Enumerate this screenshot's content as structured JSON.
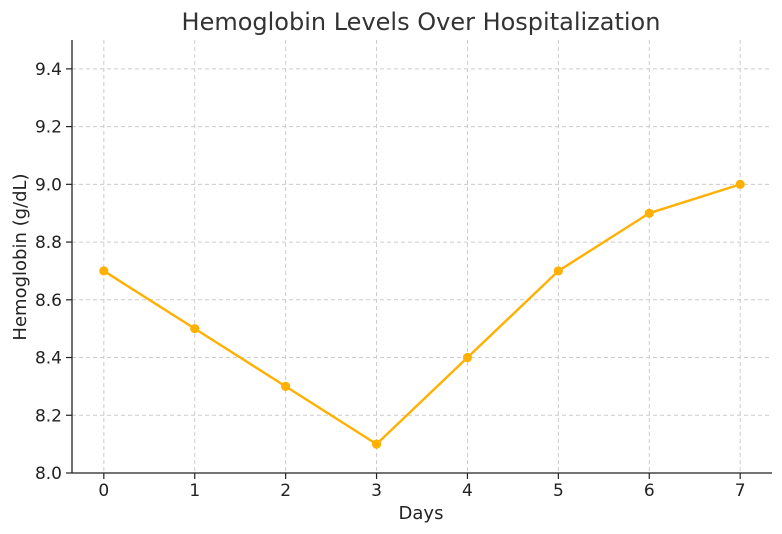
{
  "chart_data": {
    "type": "line",
    "title": "Hemoglobin Levels Over Hospitalization",
    "xlabel": "Days",
    "ylabel": "Hemoglobin (g/dL)",
    "x": [
      0,
      1,
      2,
      3,
      4,
      5,
      6,
      7
    ],
    "series": [
      {
        "values": [
          8.7,
          8.5,
          8.3,
          8.1,
          8.4,
          8.7,
          8.9,
          9.0
        ]
      }
    ],
    "xlim": [
      -0.35,
      7.35
    ],
    "ylim": [
      8.0,
      9.5
    ],
    "xticks": [
      "0",
      "1",
      "2",
      "3",
      "4",
      "5",
      "6",
      "7"
    ],
    "yticks": [
      "8.0",
      "8.2",
      "8.4",
      "8.6",
      "8.8",
      "9.0",
      "9.2",
      "9.4"
    ],
    "grid": true,
    "line_color": "#ffb000"
  }
}
